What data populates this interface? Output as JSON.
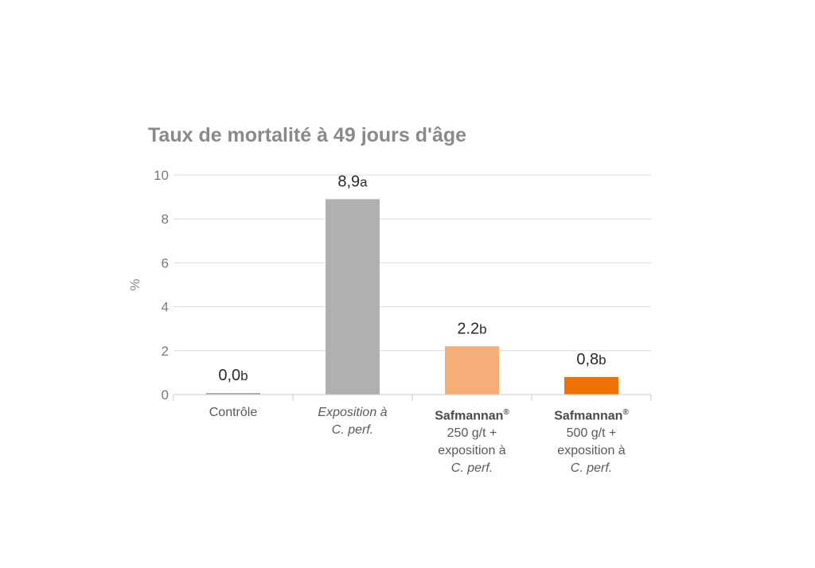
{
  "chart_data": {
    "type": "bar",
    "title": "Taux de mortalité à 49 jours d'âge",
    "ylabel": "%",
    "ylim": [
      0,
      10
    ],
    "yticks": [
      "0",
      "2",
      "4",
      "6",
      "8",
      "10"
    ],
    "grid": true,
    "categories": [
      "Contrôle",
      "Exposition à C. perf.",
      "Safmannan® 250 g/t + exposition à C. perf.",
      "Safmannan® 500 g/t + exposition à C. perf."
    ],
    "values": [
      0.0,
      8.9,
      2.2,
      0.8
    ],
    "value_labels": [
      "0,0",
      "8,9",
      "2.2",
      "0,8"
    ],
    "significance_letters": [
      "b",
      "a",
      "b",
      "b"
    ],
    "colors": [
      "#a9a9a9",
      "#b0b0b0",
      "#f5ae77",
      "#ee7203"
    ]
  },
  "xlabels": {
    "c0": {
      "line1": "Contrôle"
    },
    "c1": {
      "line1": "Exposition à",
      "line2": "C. perf."
    },
    "c2": {
      "brand": "Safmannan",
      "reg": "®",
      "line2": "250 g/t +",
      "line3": "exposition à",
      "line4": "C. perf."
    },
    "c3": {
      "brand": "Safmannan",
      "reg": "®",
      "line2": "500 g/t +",
      "line3": "exposition à",
      "line4": "C. perf."
    }
  }
}
